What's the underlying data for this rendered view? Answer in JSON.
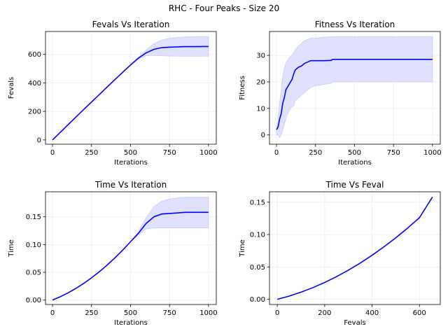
{
  "figure": {
    "suptitle": "RHC - Four Peaks - Size 20"
  },
  "colors": {
    "line": "#0000ff",
    "band": "#e0e0ff",
    "grid": "#ececec",
    "axis": "#000000"
  },
  "chart_data": [
    {
      "type": "line",
      "title": "Fevals Vs Iteration",
      "xlabel": "Iterations",
      "ylabel": "Fevals",
      "xlim": [
        -45,
        1050
      ],
      "ylim": [
        -30,
        760
      ],
      "xticks": [
        0,
        250,
        500,
        750,
        1000
      ],
      "yticks": [
        0,
        200,
        400,
        600
      ],
      "xtick_labels": [
        "0",
        "250",
        "500",
        "750",
        "1000"
      ],
      "ytick_labels": [
        "0",
        "200",
        "400",
        "600"
      ],
      "grid": true,
      "series": [
        {
          "x": [
            0,
            100,
            200,
            300,
            400,
            500,
            550,
            600,
            650,
            700,
            750,
            800,
            850,
            900,
            1000
          ],
          "y": [
            0,
            107,
            213,
            318,
            423,
            525,
            573,
            610,
            635,
            647,
            650,
            652,
            654,
            654,
            655
          ],
          "lower": [
            0,
            107,
            213,
            318,
            423,
            525,
            565,
            590,
            592,
            590,
            588,
            587,
            587,
            587,
            587
          ],
          "upper": [
            0,
            107,
            213,
            318,
            423,
            525,
            578,
            630,
            675,
            700,
            712,
            718,
            722,
            724,
            724
          ]
        }
      ]
    },
    {
      "type": "line",
      "title": "Fitness Vs Iteration",
      "xlabel": "Iterations",
      "ylabel": "Fitness",
      "xlim": [
        -45,
        1050
      ],
      "ylim": [
        -3.5,
        39
      ],
      "xticks": [
        0,
        250,
        500,
        750,
        1000
      ],
      "yticks": [
        0,
        10,
        20,
        30
      ],
      "xtick_labels": [
        "0",
        "250",
        "500",
        "750",
        "1000"
      ],
      "ytick_labels": [
        "0",
        "10",
        "20",
        "30"
      ],
      "grid": true,
      "series": [
        {
          "x": [
            0,
            10,
            20,
            30,
            40,
            50,
            60,
            70,
            80,
            90,
            100,
            110,
            120,
            140,
            160,
            180,
            200,
            220,
            250,
            300,
            350,
            360,
            400,
            500,
            600,
            700,
            800,
            900,
            1000
          ],
          "y": [
            2,
            3,
            6,
            8,
            12,
            14,
            17,
            18,
            19,
            20,
            21,
            23,
            24.5,
            25.5,
            26,
            27,
            27.5,
            28,
            28,
            28,
            28.1,
            28.5,
            28.5,
            28.5,
            28.5,
            28.5,
            28.5,
            28.5,
            28.5
          ],
          "lower": [
            0,
            0,
            -1,
            0,
            2,
            4,
            6,
            8,
            9,
            10,
            10.5,
            11,
            13,
            14,
            15,
            16,
            17,
            18,
            18.5,
            19,
            19.5,
            20,
            20,
            20,
            20,
            20,
            20,
            20,
            20
          ],
          "upper": [
            2,
            5,
            12,
            17,
            22,
            25,
            27,
            28,
            29,
            29.5,
            30,
            31,
            32,
            33.5,
            34.5,
            35.5,
            36,
            36.5,
            36.5,
            36.8,
            37,
            37,
            37,
            37,
            37,
            37,
            37,
            37,
            37
          ]
        }
      ]
    },
    {
      "type": "line",
      "title": "Time Vs Iteration",
      "xlabel": "Iterations",
      "ylabel": "Time",
      "xlim": [
        -45,
        1050
      ],
      "ylim": [
        -0.008,
        0.195
      ],
      "xticks": [
        0,
        250,
        500,
        750,
        1000
      ],
      "yticks": [
        0.0,
        0.05,
        0.1,
        0.15
      ],
      "xtick_labels": [
        "0",
        "250",
        "500",
        "750",
        "1000"
      ],
      "ytick_labels": [
        "0.00",
        "0.05",
        "0.10",
        "0.15"
      ],
      "grid": true,
      "series": [
        {
          "x": [
            0,
            50,
            100,
            150,
            200,
            250,
            300,
            350,
            400,
            450,
            500,
            550,
            600,
            650,
            700,
            750,
            800,
            850,
            900,
            1000
          ],
          "y": [
            0,
            0.006,
            0.013,
            0.021,
            0.03,
            0.04,
            0.051,
            0.063,
            0.076,
            0.09,
            0.105,
            0.12,
            0.138,
            0.15,
            0.155,
            0.156,
            0.157,
            0.158,
            0.158,
            0.158
          ],
          "lower": [
            0,
            0.006,
            0.013,
            0.021,
            0.03,
            0.04,
            0.051,
            0.063,
            0.076,
            0.09,
            0.105,
            0.117,
            0.128,
            0.13,
            0.13,
            0.13,
            0.13,
            0.13,
            0.13,
            0.13
          ],
          "upper": [
            0,
            0.006,
            0.013,
            0.021,
            0.03,
            0.04,
            0.051,
            0.063,
            0.076,
            0.09,
            0.105,
            0.123,
            0.148,
            0.168,
            0.178,
            0.182,
            0.184,
            0.185,
            0.185,
            0.185
          ]
        }
      ]
    },
    {
      "type": "line",
      "title": "Time Vs Feval",
      "xlabel": "Fevals",
      "ylabel": "Time",
      "xlim": [
        -33,
        688
      ],
      "ylim": [
        -0.008,
        0.166
      ],
      "xticks": [
        0,
        200,
        400,
        600
      ],
      "yticks": [
        0.0,
        0.05,
        0.1,
        0.15
      ],
      "xtick_labels": [
        "0",
        "200",
        "400",
        "600"
      ],
      "ytick_labels": [
        "0.00",
        "0.05",
        "0.10",
        "0.15"
      ],
      "grid": true,
      "series": [
        {
          "x": [
            0,
            50,
            100,
            150,
            200,
            250,
            300,
            350,
            400,
            450,
            500,
            550,
            600,
            655
          ],
          "y": [
            0,
            0.005,
            0.011,
            0.018,
            0.026,
            0.035,
            0.045,
            0.056,
            0.068,
            0.081,
            0.095,
            0.11,
            0.126,
            0.158
          ]
        }
      ]
    }
  ]
}
